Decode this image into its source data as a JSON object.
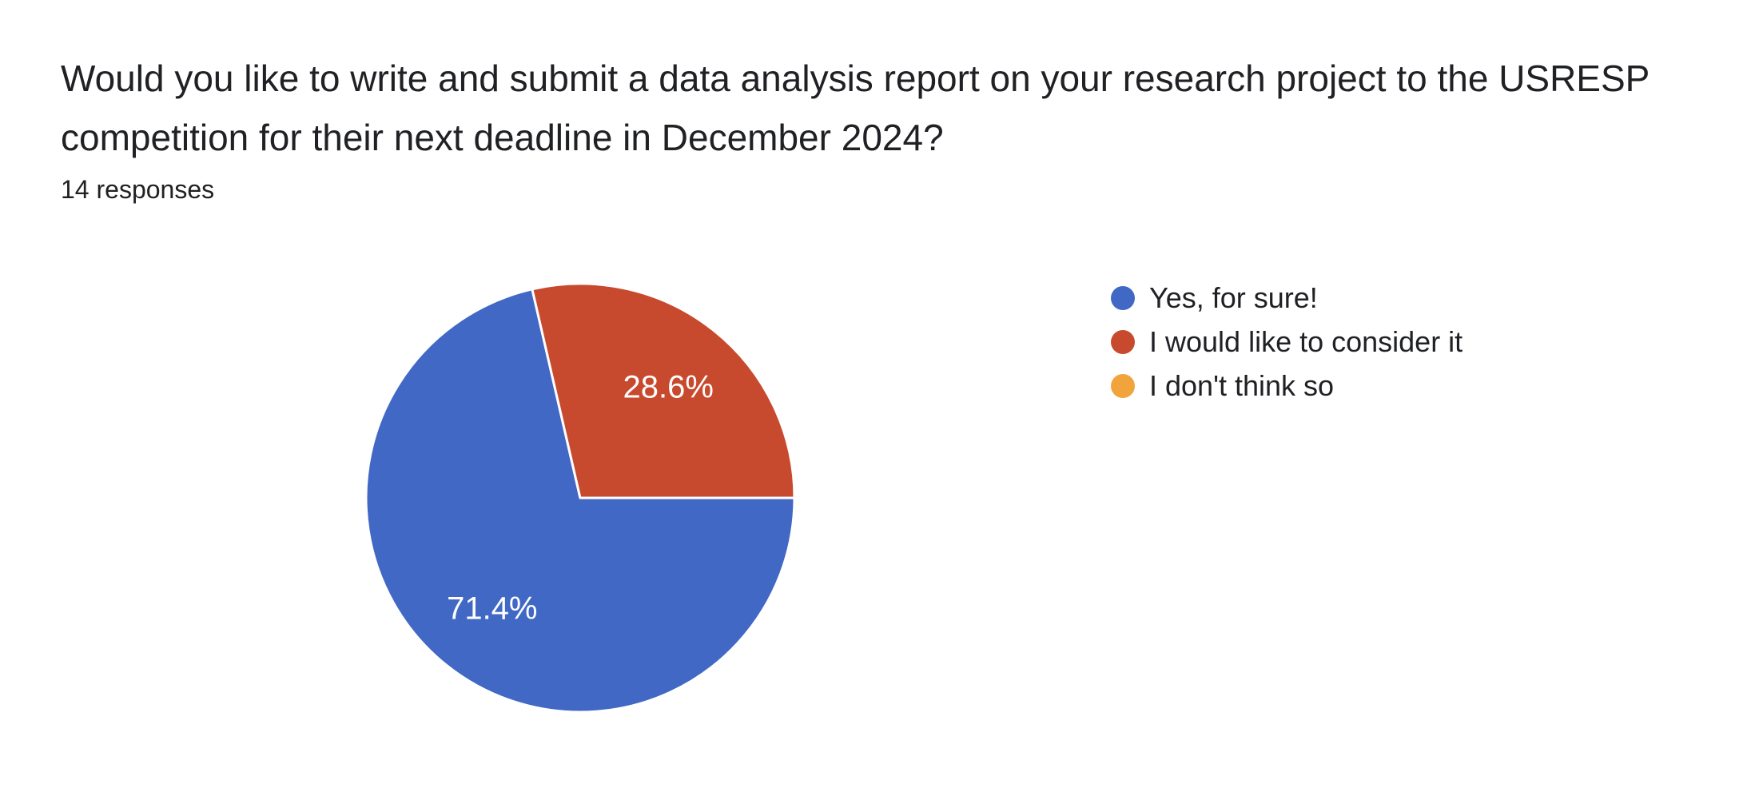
{
  "question": {
    "title_lines": [
      "Would you like to write and submit a data analysis report on your research project to the USRESP",
      "competition for their next deadline in December 2024?"
    ],
    "responses_count_label": "14 responses"
  },
  "chart_data": {
    "type": "pie",
    "title": "Would you like to write and submit a data analysis report on your research project to the USRESP competition for their next deadline in December 2024?",
    "subtitle": "14 responses",
    "categories": [
      "Yes, for sure!",
      "I would like to consider it",
      "I don't think so"
    ],
    "percentages": [
      71.4,
      28.6,
      0
    ],
    "percent_labels": [
      "71.4%",
      "28.6%",
      ""
    ],
    "colors": [
      "#4268c5",
      "#c84a2e",
      "#f2a43c"
    ],
    "slice_label_color": "#ffffff",
    "slice_border_color": "#ffffff",
    "start_angle_deg": 90,
    "label_radius_ratio": 0.66,
    "legend_position": "right"
  },
  "colors": {
    "background": "#ffffff",
    "text": "#202124"
  }
}
